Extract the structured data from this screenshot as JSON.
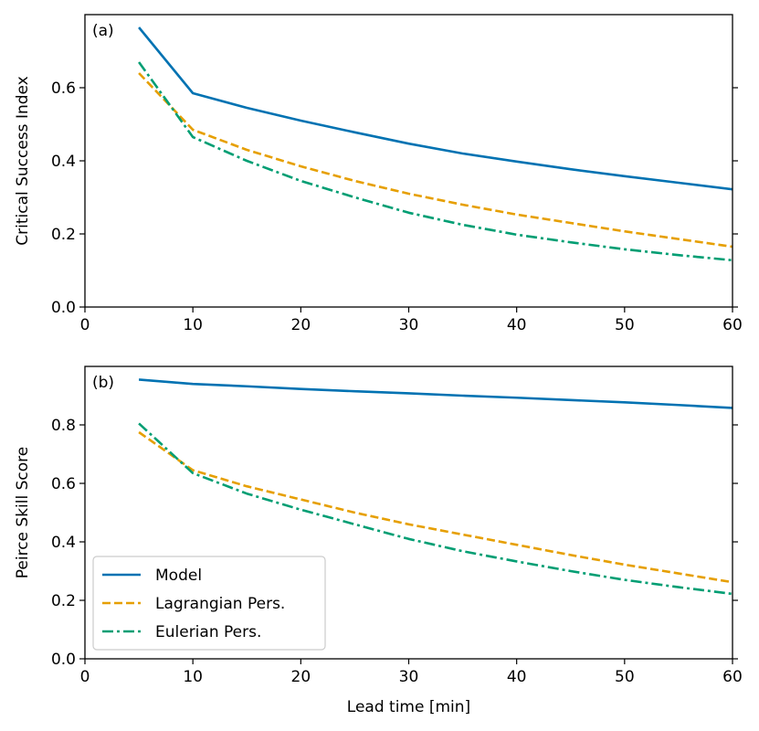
{
  "colors": {
    "model": "#0072b2",
    "lagrangian": "#e69f00",
    "eulerian": "#009e73"
  },
  "chart_data": [
    {
      "type": "line",
      "panel_label": "(a)",
      "title": "",
      "xlabel": "",
      "ylabel": "Critical Success Index",
      "xlim": [
        0,
        60
      ],
      "ylim": [
        0,
        0.8
      ],
      "xticks": [
        0,
        10,
        20,
        30,
        40,
        50,
        60
      ],
      "yticks": [
        0.0,
        0.2,
        0.4,
        0.6
      ],
      "x": [
        5,
        10,
        15,
        20,
        25,
        30,
        35,
        40,
        45,
        50,
        55,
        60
      ],
      "series": [
        {
          "name": "Model",
          "style": "solid",
          "color_key": "model",
          "values": [
            0.765,
            0.585,
            0.545,
            0.51,
            0.478,
            0.447,
            0.42,
            0.398,
            0.377,
            0.358,
            0.34,
            0.322
          ]
        },
        {
          "name": "Lagrangian Pers.",
          "style": "dashed",
          "color_key": "lagrangian",
          "values": [
            0.64,
            0.485,
            0.43,
            0.385,
            0.345,
            0.31,
            0.28,
            0.253,
            0.23,
            0.207,
            0.186,
            0.165
          ]
        },
        {
          "name": "Eulerian Pers.",
          "style": "dashdot",
          "color_key": "eulerian",
          "values": [
            0.67,
            0.465,
            0.4,
            0.345,
            0.3,
            0.258,
            0.225,
            0.198,
            0.177,
            0.158,
            0.142,
            0.128
          ]
        }
      ]
    },
    {
      "type": "line",
      "panel_label": "(b)",
      "title": "",
      "xlabel": "Lead time [min]",
      "ylabel": "Peirce Skill Score",
      "xlim": [
        0,
        60
      ],
      "ylim": [
        0,
        1.0
      ],
      "xticks": [
        0,
        10,
        20,
        30,
        40,
        50,
        60
      ],
      "yticks": [
        0.0,
        0.2,
        0.4,
        0.6,
        0.8
      ],
      "x": [
        5,
        10,
        15,
        20,
        25,
        30,
        35,
        40,
        45,
        50,
        55,
        60
      ],
      "legend": {
        "location": "lower-left",
        "entries": [
          "Model",
          "Lagrangian Pers.",
          "Eulerian Pers."
        ]
      },
      "series": [
        {
          "name": "Model",
          "style": "solid",
          "color_key": "model",
          "values": [
            0.955,
            0.94,
            0.932,
            0.923,
            0.915,
            0.908,
            0.9,
            0.893,
            0.885,
            0.877,
            0.868,
            0.858
          ]
        },
        {
          "name": "Lagrangian Pers.",
          "style": "dashed",
          "color_key": "lagrangian",
          "values": [
            0.775,
            0.645,
            0.59,
            0.545,
            0.5,
            0.46,
            0.425,
            0.39,
            0.355,
            0.322,
            0.292,
            0.262
          ]
        },
        {
          "name": "Eulerian Pers.",
          "style": "dashdot",
          "color_key": "eulerian",
          "values": [
            0.805,
            0.635,
            0.565,
            0.51,
            0.46,
            0.41,
            0.368,
            0.333,
            0.3,
            0.27,
            0.245,
            0.222
          ]
        }
      ]
    }
  ]
}
